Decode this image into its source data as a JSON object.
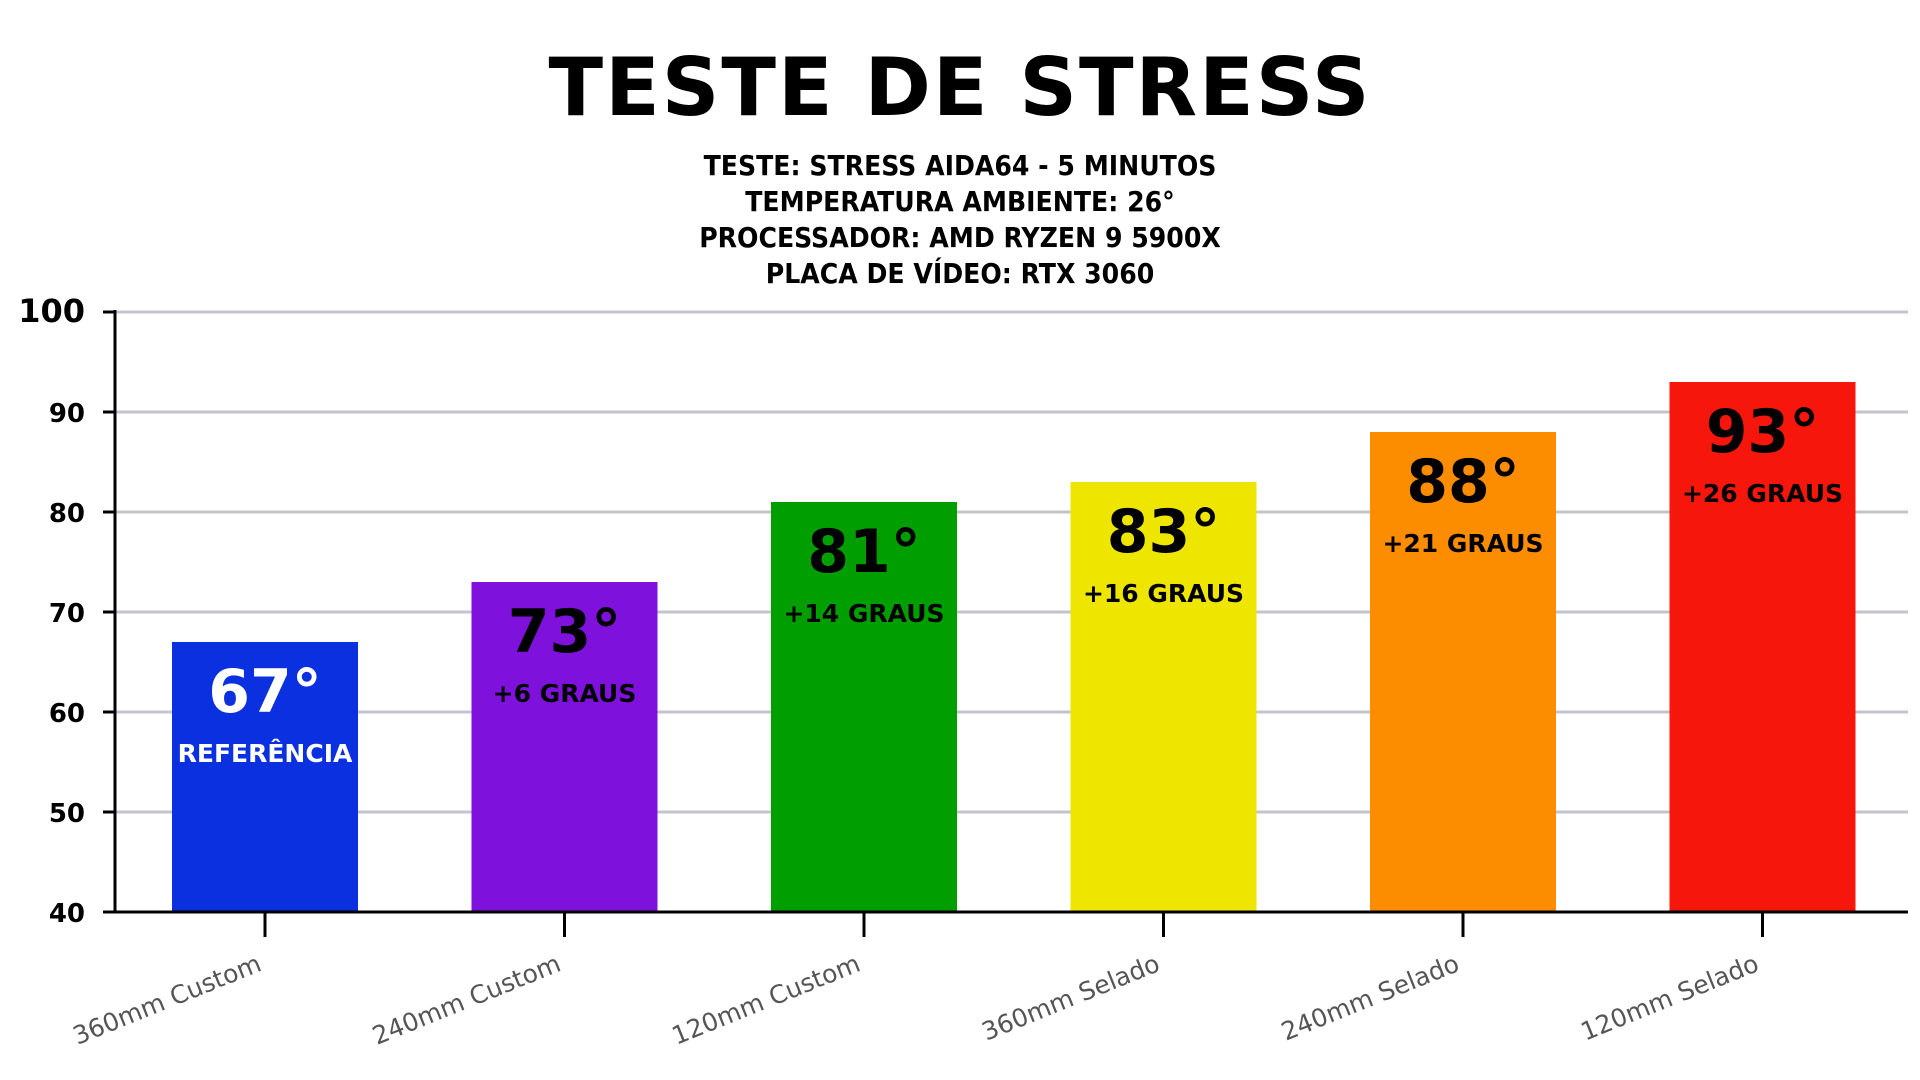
{
  "header": {
    "title": "TESTE DE STRESS",
    "lines": [
      "TESTE: STRESS AIDA64 - 5 MINUTOS",
      "TEMPERATURA AMBIENTE: 26°",
      "PROCESSADOR: AMD RYZEN 9 5900X",
      "PLACA DE VÍDEO: RTX 3060"
    ]
  },
  "chart_data": {
    "type": "bar",
    "title": "TESTE DE STRESS",
    "xlabel": "",
    "ylabel": "",
    "ylim": [
      40,
      100
    ],
    "yticks": [
      40,
      50,
      60,
      70,
      80,
      90,
      100
    ],
    "grid": true,
    "categories": [
      "360mm Custom",
      "240mm Custom",
      "120mm Custom",
      "360mm Selado",
      "240mm Selado",
      "120mm Selado"
    ],
    "values": [
      67,
      73,
      81,
      83,
      88,
      93
    ],
    "value_labels": [
      "67°",
      "73°",
      "81°",
      "83°",
      "88°",
      "93°"
    ],
    "notes": [
      "REFERÊNCIA",
      "+6 GRAUS",
      "+14 GRAUS",
      "+16 GRAUS",
      "+21 GRAUS",
      "+26 GRAUS"
    ],
    "colors": [
      "#0a30e0",
      "#7e12dc",
      "#019e00",
      "#eee600",
      "#fc8d00",
      "#f6160b"
    ],
    "label_colors": [
      "#ffffff",
      "#000000",
      "#000000",
      "#000000",
      "#000000",
      "#000000"
    ]
  }
}
